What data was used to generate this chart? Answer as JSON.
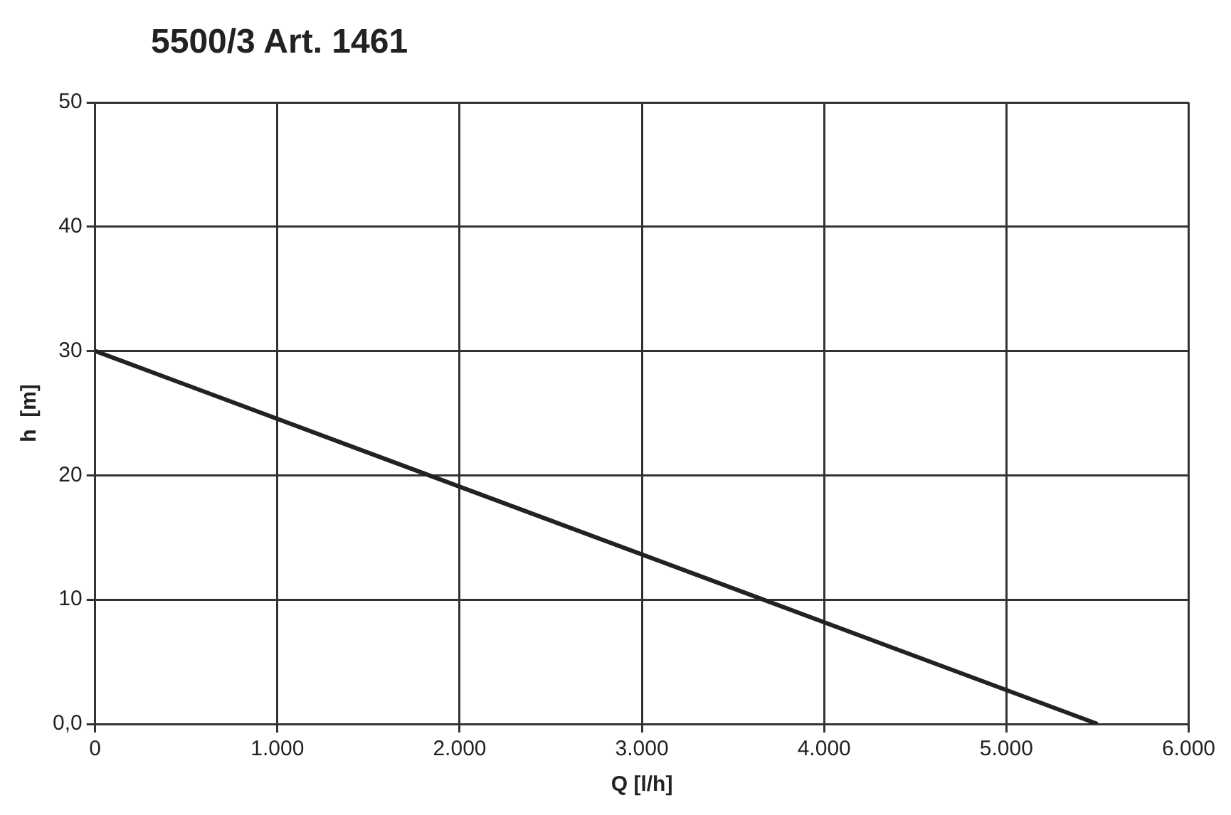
{
  "chart_data": {
    "type": "line",
    "title": "5500/3  Art. 1461",
    "xlabel": "Q [l/h]",
    "ylabel": "h  [m]",
    "series": [
      {
        "color": "#222222",
        "x": [
          0,
          5500
        ],
        "values": [
          30,
          0
        ]
      }
    ],
    "xlim": [
      0,
      6000
    ],
    "xticks": [
      0,
      {
        "value": 1000,
        "label": "1.000"
      },
      {
        "value": 2000,
        "label": "2.000"
      },
      {
        "value": 3000,
        "label": "3.000"
      },
      {
        "value": 4000,
        "label": "4.000"
      },
      {
        "value": 5000,
        "label": "5.000"
      },
      {
        "value": 6000,
        "label": "6.000"
      }
    ],
    "ylim": [
      0,
      50
    ],
    "yticks": [
      {
        "value": 0,
        "label": "0,0"
      },
      10,
      20,
      30,
      40,
      50
    ],
    "grid": true,
    "legend": false,
    "marker": "none",
    "line_style": "solid"
  }
}
